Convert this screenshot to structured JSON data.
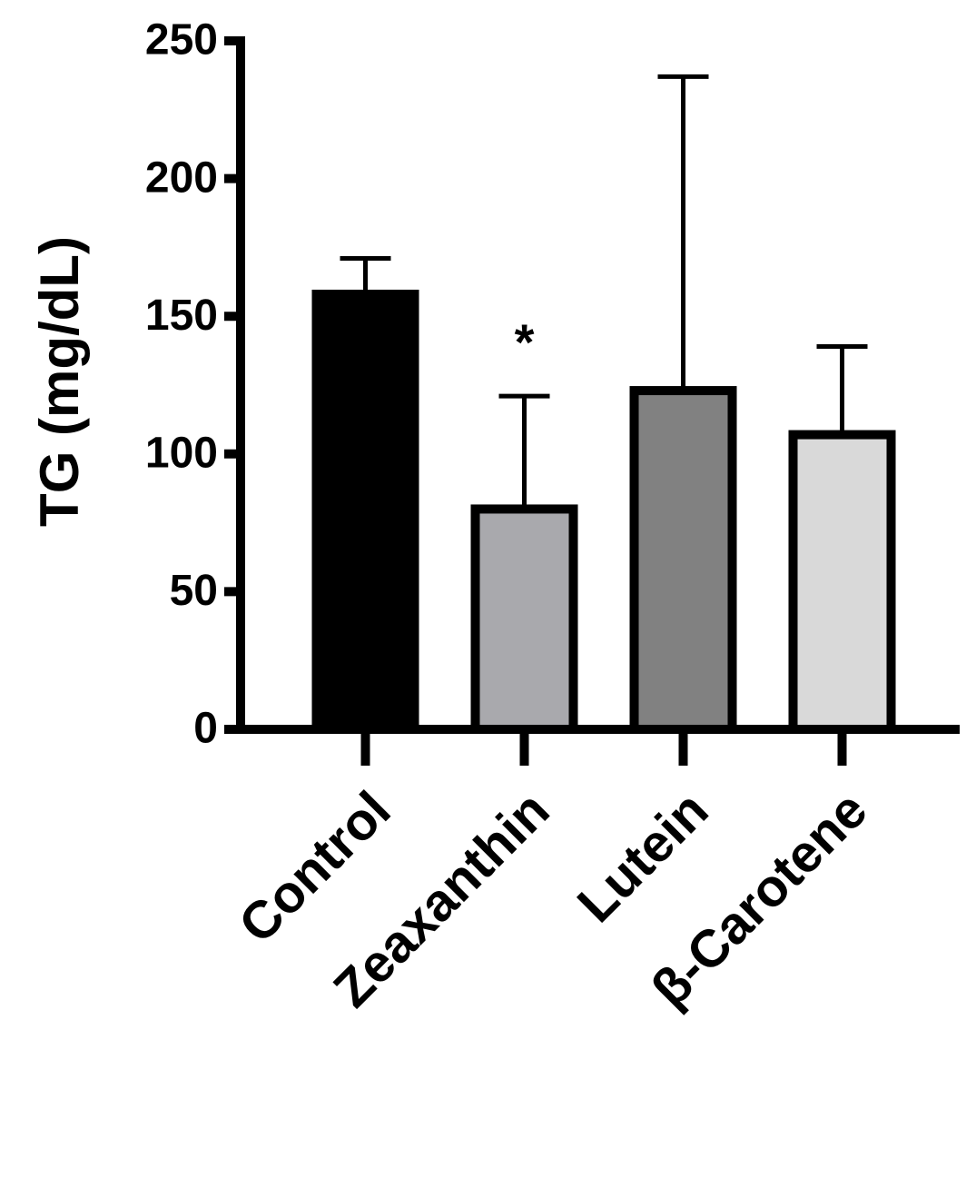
{
  "chart_data": {
    "type": "bar",
    "y_label": "TG (mg/dL)",
    "categories": [
      "Control",
      "Zeaxanthin",
      "Lutein",
      "β-Carotene"
    ],
    "values": [
      158,
      80,
      123,
      107
    ],
    "errors": [
      13,
      41,
      114,
      32
    ],
    "colors": [
      "#000000",
      "#a9a9ad",
      "#818181",
      "#d9d9d9"
    ],
    "ylim": [
      0,
      250
    ],
    "yticks": [
      0,
      50,
      100,
      150,
      200,
      250
    ],
    "annotations": [
      {
        "text": "*",
        "category": "Zeaxanthin"
      }
    ]
  }
}
